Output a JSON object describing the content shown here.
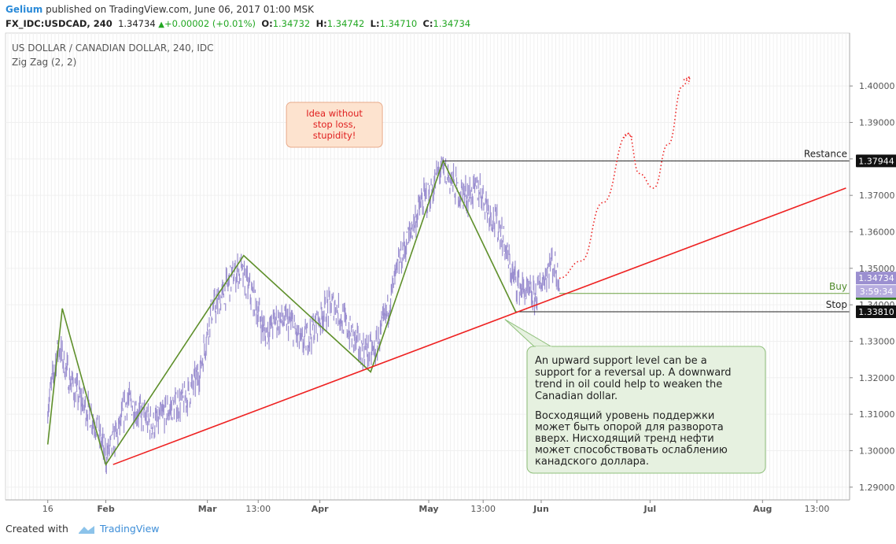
{
  "header": {
    "author": "Gelium",
    "published_text": "published on TradingView.com, June 06, 2017 01:00 MSK",
    "symbol": "FX_IDC:USDCAD, 240",
    "price": "1.34734",
    "change": "+0.00002 (+0.01%)",
    "o_label": "O:",
    "o_value": "1.34732",
    "h_label": "H:",
    "h_value": "1.34742",
    "l_label": "L:",
    "l_value": "1.34710",
    "c_label": "C:",
    "c_value": "1.34734"
  },
  "legend": {
    "title": "US DOLLAR / CANADIAN DOLLAR, 240, IDC",
    "indicator": "Zig Zag (2, 2)"
  },
  "footer": {
    "created_with": "Created with",
    "brand": "TradingView"
  },
  "colors": {
    "price": "#9b8fd0",
    "zigzag": "#5e8f2a",
    "support": "#ee2222",
    "forecast": "#ee2222",
    "callout_bg": "#fde3cf",
    "note_bg": "#e6f1e0"
  },
  "chart_data": {
    "type": "line",
    "y_axis": {
      "range": [
        1.2865,
        1.4145
      ],
      "ticks": [
        "1.29000",
        "1.30000",
        "1.31000",
        "1.32000",
        "1.33000",
        "1.34000",
        "1.35000",
        "1.36000",
        "1.37000",
        "1.38000",
        "1.39000",
        "1.40000"
      ]
    },
    "x_axis": {
      "ticks": [
        {
          "label": "16",
          "x": "2017-01-16"
        },
        {
          "label": "Feb",
          "x": "2017-02-01"
        },
        {
          "label": "Mar",
          "x": "2017-03-01"
        },
        {
          "label": "13:00",
          "x": "2017-03-15"
        },
        {
          "label": "Apr",
          "x": "2017-04-01"
        },
        {
          "label": "May",
          "x": "2017-05-01"
        },
        {
          "label": "13:00",
          "x": "2017-05-16"
        },
        {
          "label": "Jun",
          "x": "2017-06-01"
        },
        {
          "label": "Jul",
          "x": "2017-07-01"
        },
        {
          "label": "Aug",
          "x": "2017-08-01"
        },
        {
          "label": "13:00",
          "x": "2017-08-16"
        }
      ]
    },
    "price_series": {
      "name": "US DOLLAR / CANADIAN DOLLAR, 240, IDC",
      "points": [
        [
          "2017-01-16",
          1.312
        ],
        [
          "2017-01-19",
          1.329
        ],
        [
          "2017-01-22",
          1.3195
        ],
        [
          "2017-01-26",
          1.3125
        ],
        [
          "2017-01-29",
          1.308
        ],
        [
          "2017-02-01",
          1.2985
        ],
        [
          "2017-02-04",
          1.304
        ],
        [
          "2017-02-07",
          1.314
        ],
        [
          "2017-02-11",
          1.3095
        ],
        [
          "2017-02-14",
          1.307
        ],
        [
          "2017-02-17",
          1.31
        ],
        [
          "2017-02-21",
          1.313
        ],
        [
          "2017-02-23",
          1.314
        ],
        [
          "2017-02-27",
          1.322
        ],
        [
          "2017-03-02",
          1.338
        ],
        [
          "2017-03-05",
          1.342
        ],
        [
          "2017-03-08",
          1.348
        ],
        [
          "2017-03-10",
          1.3495
        ],
        [
          "2017-03-14",
          1.341
        ],
        [
          "2017-03-17",
          1.332
        ],
        [
          "2017-03-20",
          1.336
        ],
        [
          "2017-03-24",
          1.335
        ],
        [
          "2017-03-27",
          1.329
        ],
        [
          "2017-03-30",
          1.333
        ],
        [
          "2017-04-02",
          1.338
        ],
        [
          "2017-04-05",
          1.34
        ],
        [
          "2017-04-09",
          1.333
        ],
        [
          "2017-04-12",
          1.328
        ],
        [
          "2017-04-16",
          1.327
        ],
        [
          "2017-04-19",
          1.336
        ],
        [
          "2017-04-23",
          1.352
        ],
        [
          "2017-04-26",
          1.36
        ],
        [
          "2017-04-29",
          1.368
        ],
        [
          "2017-05-02",
          1.371
        ],
        [
          "2017-05-04",
          1.377
        ],
        [
          "2017-05-06",
          1.376
        ],
        [
          "2017-05-09",
          1.371
        ],
        [
          "2017-05-12",
          1.37
        ],
        [
          "2017-05-15",
          1.372
        ],
        [
          "2017-05-18",
          1.365
        ],
        [
          "2017-05-21",
          1.36
        ],
        [
          "2017-05-24",
          1.348
        ],
        [
          "2017-05-27",
          1.344
        ],
        [
          "2017-05-30",
          1.342
        ],
        [
          "2017-06-02",
          1.348
        ],
        [
          "2017-06-04",
          1.352
        ],
        [
          "2017-06-06",
          1.3473
        ]
      ]
    },
    "zigzag": {
      "name": "Zig Zag (2, 2)",
      "points": [
        [
          "2017-01-16",
          1.3017
        ],
        [
          "2017-01-20",
          1.339
        ],
        [
          "2017-02-01",
          1.2962
        ],
        [
          "2017-03-11",
          1.3535
        ],
        [
          "2017-04-15",
          1.3216
        ],
        [
          "2017-05-05",
          1.3795
        ],
        [
          "2017-05-25",
          1.338
        ]
      ]
    },
    "support_line": {
      "from": [
        "2017-02-03",
        1.2962
      ],
      "to": [
        "2017-08-24",
        1.372
      ]
    },
    "levels": [
      {
        "label": "Restance",
        "value": "1.37944",
        "from": "2017-05-05"
      },
      {
        "label": "Buy",
        "value": "1.34310",
        "from": "2017-06-06"
      },
      {
        "label": "Stop",
        "value": "1.33810",
        "from": "2017-05-25"
      }
    ],
    "axis_labels": {
      "last_price": "1.34734",
      "countdown": "3:59:34"
    },
    "forecast_path": [
      [
        "2017-06-06",
        1.3473
      ],
      [
        "2017-06-12",
        1.352
      ],
      [
        "2017-06-18",
        1.368
      ],
      [
        "2017-06-25",
        1.387
      ],
      [
        "2017-06-28",
        1.376
      ],
      [
        "2017-07-02",
        1.372
      ],
      [
        "2017-07-06",
        1.384
      ],
      [
        "2017-07-10",
        1.4
      ],
      [
        "2017-07-12",
        1.4025
      ]
    ],
    "callout": {
      "text": [
        "Idea without",
        "stop loss,",
        "stupidity!"
      ],
      "anchor_date": "2017-04-05",
      "anchor_price": 1.386
    },
    "note": {
      "lines_en": [
        "An upward support level can be a",
        "support for a reversal up. A downward",
        "trend in oil could help to weaken the",
        "Canadian dollar."
      ],
      "lines_ru": [
        "Восходящий уровень поддержки",
        "может быть опорой для разворота",
        "вверх. Нисходящий тренд нефти",
        "может способствовать ослаблению",
        "канадского доллара."
      ],
      "pointer_date": "2017-05-22",
      "pointer_price": 1.336
    }
  }
}
